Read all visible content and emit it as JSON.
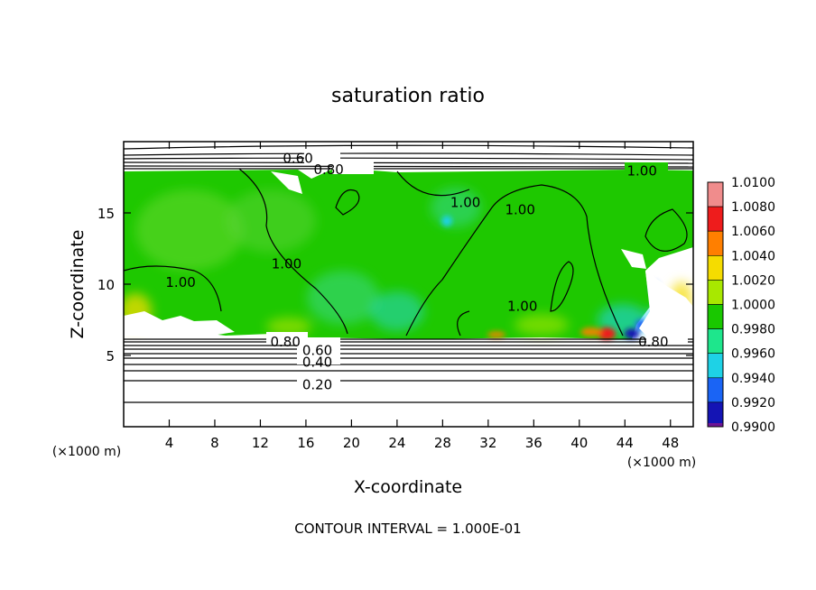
{
  "chart_data": {
    "type": "heatmap",
    "title": "saturation ratio",
    "xlabel": "X-coordinate",
    "ylabel": "Z-coordinate",
    "x_unit": "(×1000 m)",
    "z_unit": "(×1000 m)",
    "footer": "CONTOUR INTERVAL = 1.000E-01",
    "xlim": [
      0,
      50
    ],
    "ylim": [
      0,
      20
    ],
    "x_ticks": [
      4,
      8,
      12,
      16,
      20,
      24,
      28,
      32,
      36,
      40,
      44,
      48
    ],
    "y_ticks": [
      5,
      10,
      15
    ],
    "contour_labels": [
      {
        "text": "0.60",
        "x": 15.3,
        "z": 18.9
      },
      {
        "text": "0.80",
        "x": 18.0,
        "z": 18.1
      },
      {
        "text": "1.00",
        "x": 45.5,
        "z": 18.0
      },
      {
        "text": "1.00",
        "x": 30.0,
        "z": 15.8
      },
      {
        "text": "1.00",
        "x": 34.8,
        "z": 15.3
      },
      {
        "text": "1.00",
        "x": 14.3,
        "z": 11.5
      },
      {
        "text": "1.00",
        "x": 5.0,
        "z": 10.2
      },
      {
        "text": "1.00",
        "x": 35.0,
        "z": 8.5
      },
      {
        "text": "0.80",
        "x": 14.2,
        "z": 6.0
      },
      {
        "text": "0.80",
        "x": 46.5,
        "z": 6.0
      },
      {
        "text": "0.60",
        "x": 17.0,
        "z": 5.4
      },
      {
        "text": "0.40",
        "x": 17.0,
        "z": 4.6
      },
      {
        "text": "0.20",
        "x": 17.0,
        "z": 3.0
      }
    ],
    "colorbar": {
      "levels": [
        "1.0100",
        "1.0080",
        "1.0060",
        "1.0040",
        "1.0020",
        "1.0000",
        "0.9980",
        "0.9960",
        "0.9940",
        "0.9920",
        "0.9900"
      ],
      "colors": [
        "#f08c8c",
        "#ee1c1c",
        "#ff7f00",
        "#f5dc00",
        "#a8e800",
        "#19c800",
        "#1ee68c",
        "#1ed2e6",
        "#1a64f5",
        "#1414b4",
        "#6e1496"
      ]
    }
  }
}
